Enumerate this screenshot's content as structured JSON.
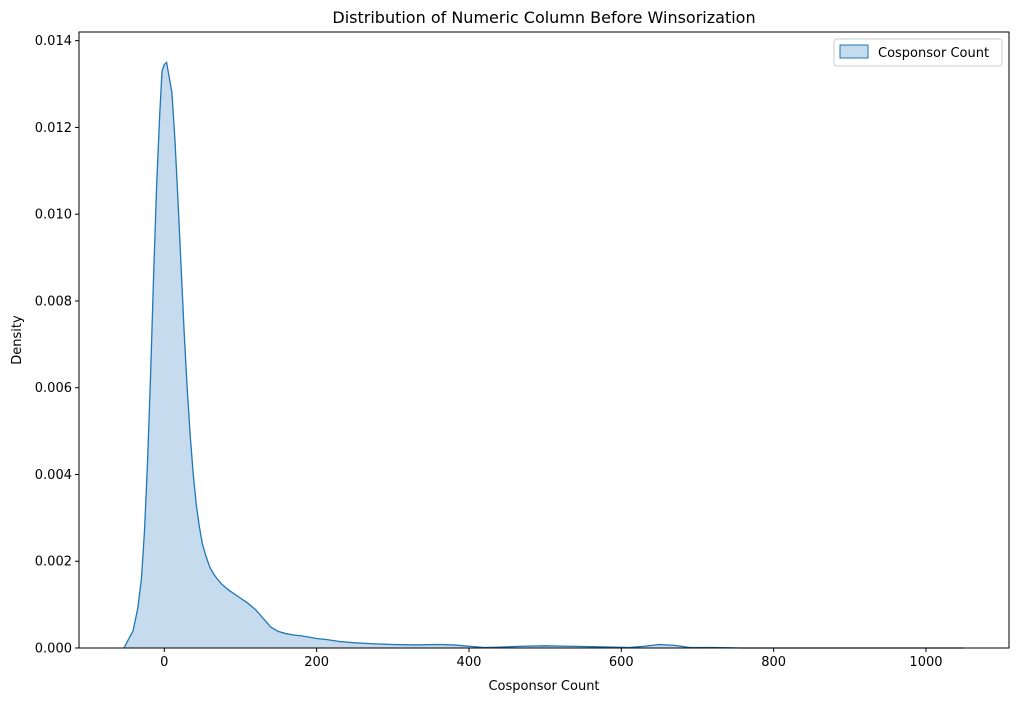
{
  "chart_data": {
    "type": "area",
    "title": "Distribution of Numeric Column Before Winsorization",
    "xlabel": "Cosponsor Count",
    "ylabel": "Density",
    "xlim": [
      -112,
      1109
    ],
    "ylim": [
      0,
      0.0142
    ],
    "x_ticks": [
      0,
      200,
      400,
      600,
      800,
      1000
    ],
    "y_ticks": [
      0.0,
      0.002,
      0.004,
      0.006,
      0.008,
      0.01,
      0.012,
      0.014
    ],
    "x_tick_labels": [
      "0",
      "200",
      "400",
      "600",
      "800",
      "1000"
    ],
    "y_tick_labels": [
      "0.000",
      "0.002",
      "0.004",
      "0.006",
      "0.008",
      "0.010",
      "0.012",
      "0.014"
    ],
    "grid": false,
    "legend": {
      "position": "top-right",
      "entries": [
        "Cosponsor Count"
      ]
    },
    "series": [
      {
        "name": "Cosponsor Count",
        "line_color": "#1f77b4",
        "fill_color": "#c6dbed",
        "x": [
          -53,
          -47,
          -41,
          -35,
          -30,
          -26,
          -22,
          -18,
          -14,
          -10,
          -6,
          -3,
          0,
          3,
          6,
          10,
          14,
          18,
          22,
          26,
          30,
          34,
          38,
          42,
          46,
          50,
          55,
          60,
          65,
          70,
          75,
          80,
          85,
          90,
          95,
          100,
          110,
          120,
          130,
          140,
          150,
          160,
          170,
          180,
          190,
          200,
          215,
          230,
          250,
          270,
          300,
          330,
          360,
          380,
          400,
          420,
          440,
          470,
          500,
          530,
          560,
          590,
          610,
          630,
          650,
          670,
          690,
          720,
          760,
          800,
          850,
          900,
          950,
          1000,
          1050
        ],
        "y": [
          0.0,
          0.0002,
          0.0004,
          0.0009,
          0.0016,
          0.0027,
          0.0043,
          0.0063,
          0.0086,
          0.0107,
          0.0123,
          0.0133,
          0.01345,
          0.0135,
          0.0132,
          0.0128,
          0.0117,
          0.0103,
          0.0088,
          0.0073,
          0.006,
          0.0049,
          0.004,
          0.0033,
          0.0028,
          0.0024,
          0.0021,
          0.00185,
          0.0017,
          0.00158,
          0.00148,
          0.0014,
          0.00133,
          0.00127,
          0.00121,
          0.00115,
          0.00103,
          0.00088,
          0.00068,
          0.00048,
          0.00038,
          0.00033,
          0.0003,
          0.00028,
          0.00025,
          0.00022,
          0.00019,
          0.00015,
          0.00012,
          0.0001,
          8e-05,
          7e-05,
          8e-05,
          7e-05,
          4e-05,
          1e-05,
          2e-05,
          4e-05,
          5e-05,
          4e-05,
          3e-05,
          2e-05,
          1e-05,
          4e-05,
          8e-05,
          6e-05,
          1e-05,
          1e-05,
          0.0,
          0.0,
          0.0,
          0.0,
          0.0,
          0.0,
          0.0
        ]
      }
    ]
  }
}
